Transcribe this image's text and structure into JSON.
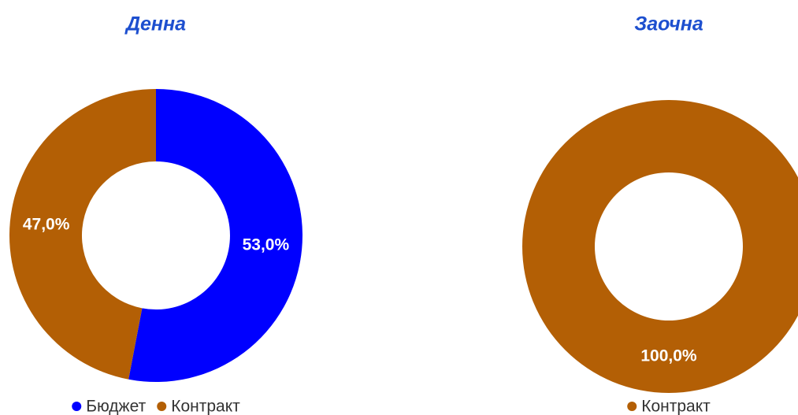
{
  "chart_data": [
    {
      "type": "donut",
      "title": "Денна",
      "categories": [
        "Бюджет",
        "Контракт"
      ],
      "values": [
        53.0,
        47.0
      ],
      "value_labels": [
        "53,0%",
        "47,0%"
      ],
      "colors": [
        "#0000ff",
        "#b35f05"
      ]
    },
    {
      "type": "donut",
      "title": "Заочна",
      "categories": [
        "Контракт"
      ],
      "values": [
        100.0
      ],
      "value_labels": [
        "100,0%"
      ],
      "colors": [
        "#b35f05"
      ]
    }
  ]
}
